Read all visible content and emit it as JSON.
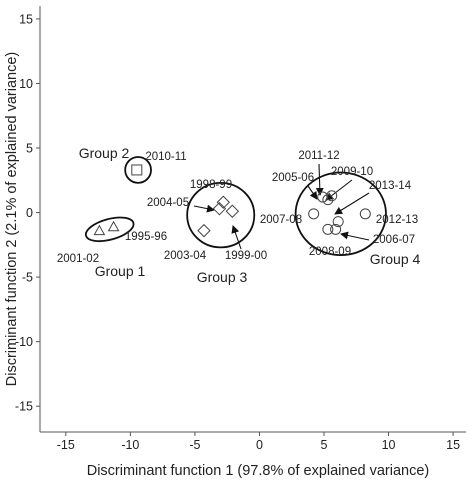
{
  "chart_data": {
    "type": "scatter",
    "xlabel": "Discriminant function 1 (97.8% of explained variance)",
    "ylabel": "Discriminant function 2 (2.1% of explained variance)",
    "xlim": [
      -17,
      16
    ],
    "ylim": [
      -17,
      16
    ],
    "xticks": [
      -15,
      -10,
      -5,
      0,
      5,
      10,
      15
    ],
    "yticks": [
      -15,
      -10,
      -5,
      0,
      5,
      10,
      15
    ],
    "grid": false,
    "points": [
      {
        "label": "2001-02",
        "x": -12.4,
        "y": -1.4,
        "marker": "triangle",
        "group": "Group 1"
      },
      {
        "label": "1995-96",
        "x": -11.3,
        "y": -1.1,
        "marker": "triangle",
        "group": "Group 1"
      },
      {
        "label": "2010-11",
        "x": -9.5,
        "y": 3.3,
        "marker": "square",
        "group": "Group 2"
      },
      {
        "label": "1998-99",
        "x": -2.8,
        "y": 0.8,
        "marker": "diamond",
        "group": "Group 3"
      },
      {
        "label": "2004-05",
        "x": -3.1,
        "y": 0.3,
        "marker": "diamond",
        "group": "Group 3"
      },
      {
        "label": "2003-04",
        "x": -4.3,
        "y": -1.4,
        "marker": "diamond",
        "group": "Group 3"
      },
      {
        "label": "1999-00",
        "x": -2.1,
        "y": 0.1,
        "marker": "diamond",
        "group": "Group 3"
      },
      {
        "label": "2011-12",
        "x": 4.9,
        "y": 1.2,
        "marker": "circle",
        "group": "Group 4"
      },
      {
        "label": "2005-06",
        "x": 5.3,
        "y": 1.0,
        "marker": "circle",
        "group": "Group 4"
      },
      {
        "label": "2009-10",
        "x": 5.6,
        "y": 1.3,
        "marker": "circle",
        "group": "Group 4"
      },
      {
        "label": "2013-14",
        "x": 8.2,
        "y": -0.1,
        "marker": "circle",
        "group": "Group 4"
      },
      {
        "label": "2007-08",
        "x": 4.2,
        "y": -0.1,
        "marker": "circle",
        "group": "Group 4"
      },
      {
        "label": "2012-13",
        "x": 6.1,
        "y": -0.7,
        "marker": "circle",
        "group": "Group 4"
      },
      {
        "label": "2008-09",
        "x": 5.3,
        "y": -1.3,
        "marker": "circle",
        "group": "Group 4"
      },
      {
        "label": "2006-07",
        "x": 5.9,
        "y": -1.3,
        "marker": "circle",
        "group": "Group 4"
      }
    ],
    "groups": [
      {
        "name": "Group 1",
        "cx": -11.6,
        "cy": -1.3,
        "rx": 1.9,
        "ry": 0.8,
        "rotate": -15
      },
      {
        "name": "Group 2",
        "cx": -9.4,
        "cy": 3.3,
        "rx": 1.0,
        "ry": 1.0,
        "rotate": 0
      },
      {
        "name": "Group 3",
        "cx": -3.0,
        "cy": -0.2,
        "rx": 2.6,
        "ry": 2.5,
        "rotate": 0
      },
      {
        "name": "Group 4",
        "cx": 6.3,
        "cy": -0.1,
        "rx": 3.5,
        "ry": 3.2,
        "rotate": 0
      }
    ]
  }
}
